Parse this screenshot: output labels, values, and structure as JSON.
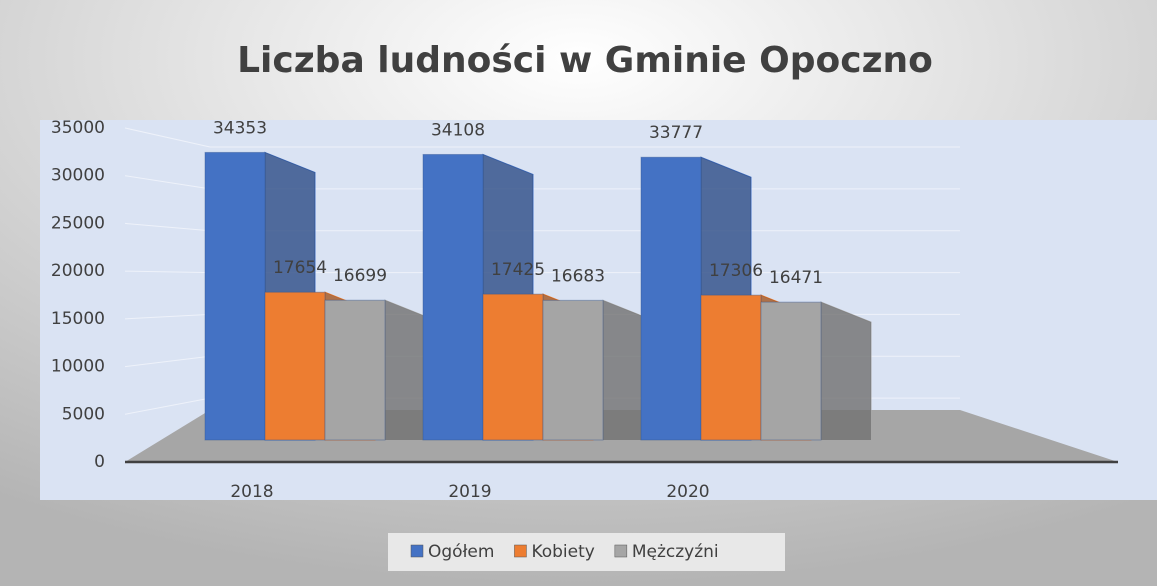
{
  "chart_data": {
    "type": "bar",
    "title": "Liczba ludności w Gminie Opoczno",
    "categories": [
      "2018",
      "2019",
      "2020"
    ],
    "series": [
      {
        "name": "Ogółem",
        "color": "#4472c4",
        "values": [
          34353,
          34108,
          33777
        ]
      },
      {
        "name": "Kobiety",
        "color": "#ed7d31",
        "values": [
          17654,
          17425,
          17306
        ]
      },
      {
        "name": "Mężczyźni",
        "color": "#a5a5a5",
        "values": [
          16699,
          16683,
          16471
        ]
      }
    ],
    "ylim": [
      0,
      35000
    ],
    "yticks": [
      0,
      5000,
      10000,
      15000,
      20000,
      25000,
      30000,
      35000
    ],
    "grid": true,
    "legend": "bottom"
  }
}
